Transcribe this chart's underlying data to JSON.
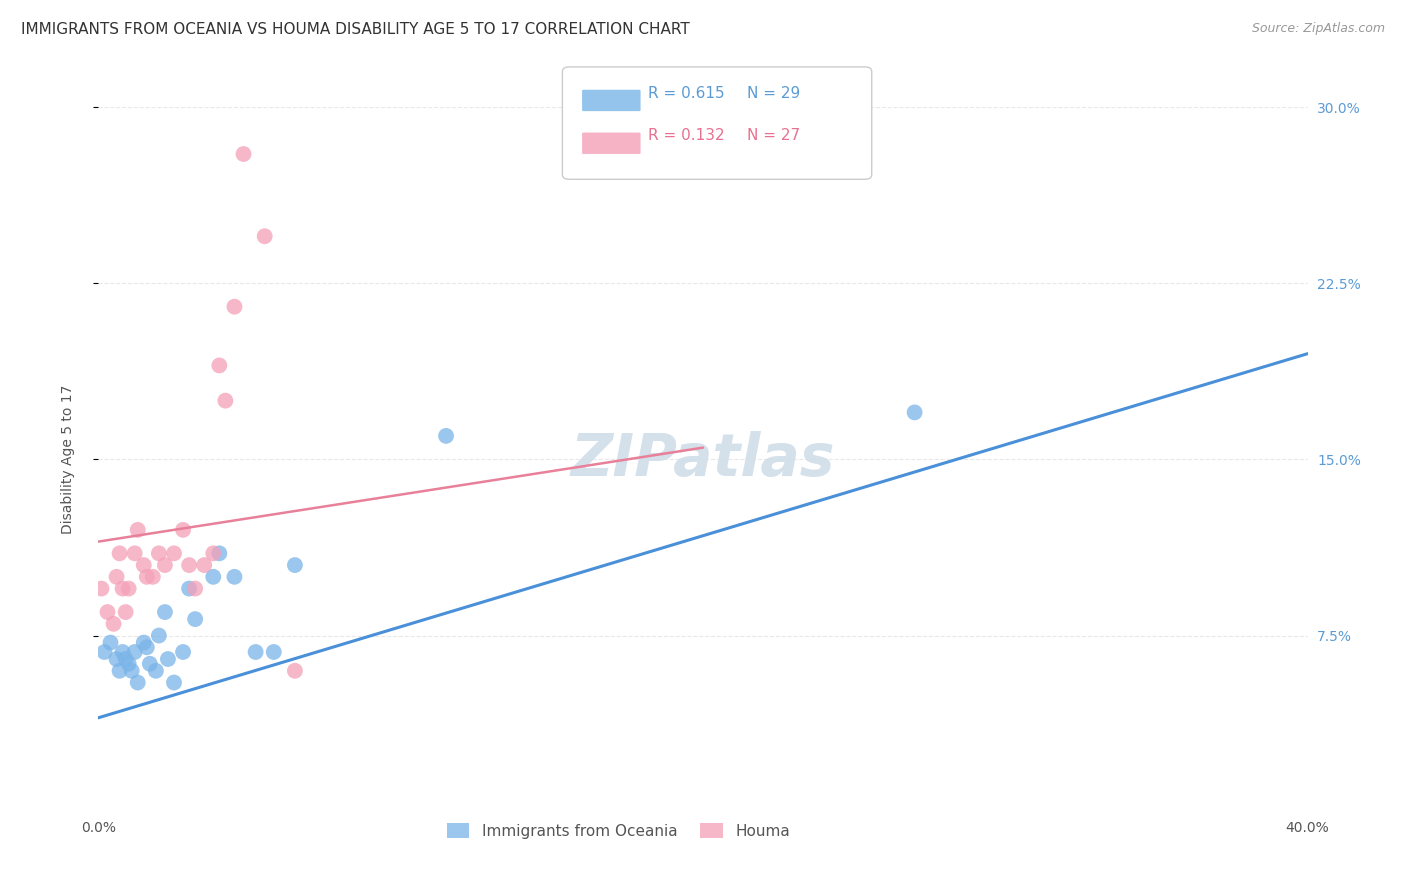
{
  "title": "IMMIGRANTS FROM OCEANIA VS HOUMA DISABILITY AGE 5 TO 17 CORRELATION CHART",
  "source": "Source: ZipAtlas.com",
  "ylabel": "Disability Age 5 to 17",
  "xlim": [
    0.0,
    0.4
  ],
  "ylim": [
    0.0,
    0.3
  ],
  "xticks": [
    0.0,
    0.4
  ],
  "xticklabels": [
    "0.0%",
    "40.0%"
  ],
  "yticks": [
    0.075,
    0.15,
    0.225,
    0.3
  ],
  "yticklabels": [
    "7.5%",
    "15.0%",
    "22.5%",
    "30.0%"
  ],
  "legend_top": [
    {
      "label_r": "R = 0.615",
      "label_n": "N = 29",
      "color": "#a8c8f0"
    },
    {
      "label_r": "R = 0.132",
      "label_n": "N = 27",
      "color": "#f4b8c8"
    }
  ],
  "blue_scatter_x": [
    0.002,
    0.004,
    0.006,
    0.007,
    0.008,
    0.009,
    0.01,
    0.011,
    0.012,
    0.013,
    0.015,
    0.016,
    0.017,
    0.019,
    0.02,
    0.022,
    0.023,
    0.025,
    0.028,
    0.03,
    0.032,
    0.038,
    0.04,
    0.045,
    0.052,
    0.058,
    0.065,
    0.115,
    0.27
  ],
  "blue_scatter_y": [
    0.068,
    0.072,
    0.065,
    0.06,
    0.068,
    0.065,
    0.063,
    0.06,
    0.068,
    0.055,
    0.072,
    0.07,
    0.063,
    0.06,
    0.075,
    0.085,
    0.065,
    0.055,
    0.068,
    0.095,
    0.082,
    0.1,
    0.11,
    0.1,
    0.068,
    0.068,
    0.105,
    0.16,
    0.17
  ],
  "pink_scatter_x": [
    0.001,
    0.003,
    0.005,
    0.006,
    0.007,
    0.008,
    0.009,
    0.01,
    0.012,
    0.013,
    0.015,
    0.016,
    0.018,
    0.02,
    0.022,
    0.025,
    0.028,
    0.03,
    0.032,
    0.035,
    0.038,
    0.04,
    0.042,
    0.045,
    0.048,
    0.055,
    0.065
  ],
  "pink_scatter_y": [
    0.095,
    0.085,
    0.08,
    0.1,
    0.11,
    0.095,
    0.085,
    0.095,
    0.11,
    0.12,
    0.105,
    0.1,
    0.1,
    0.11,
    0.105,
    0.11,
    0.12,
    0.105,
    0.095,
    0.105,
    0.11,
    0.19,
    0.175,
    0.215,
    0.28,
    0.245,
    0.06
  ],
  "blue_line_x": [
    0.0,
    0.4
  ],
  "blue_line_y": [
    0.04,
    0.195
  ],
  "pink_line_x": [
    0.0,
    0.2
  ],
  "pink_line_y": [
    0.115,
    0.155
  ],
  "blue_color": "#7ab4e8",
  "pink_color": "#f4a0b8",
  "blue_line_color": "#4a90d9",
  "pink_line_color": "#e8809a",
  "background_color": "#ffffff",
  "grid_color": "#e8e8e8",
  "title_fontsize": 11,
  "axis_label_fontsize": 10,
  "tick_fontsize": 10,
  "right_tick_color": "#5b9bd5",
  "watermark_text": "ZIPatlas",
  "watermark_color": "#d0dde8",
  "bottom_legend": [
    "Immigrants from Oceania",
    "Houma"
  ]
}
